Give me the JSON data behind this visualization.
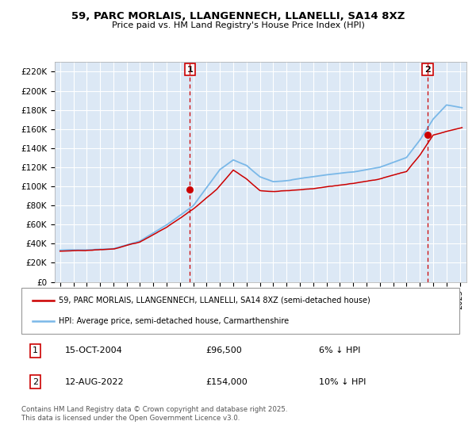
{
  "title": "59, PARC MORLAIS, LLANGENNECH, LLANELLI, SA14 8XZ",
  "subtitle": "Price paid vs. HM Land Registry's House Price Index (HPI)",
  "ylim": [
    0,
    230000
  ],
  "yticks": [
    0,
    20000,
    40000,
    60000,
    80000,
    100000,
    120000,
    140000,
    160000,
    180000,
    200000,
    220000
  ],
  "ytick_labels": [
    "£0",
    "£20K",
    "£40K",
    "£60K",
    "£80K",
    "£100K",
    "£120K",
    "£140K",
    "£160K",
    "£180K",
    "£200K",
    "£220K"
  ],
  "background_color": "#ffffff",
  "plot_bg_color": "#dce8f5",
  "grid_color": "#ffffff",
  "hpi_color": "#7ab8e8",
  "price_color": "#cc0000",
  "transaction1_date": "15-OCT-2004",
  "transaction1_price": 96500,
  "transaction1_info": "6% ↓ HPI",
  "transaction2_date": "12-AUG-2022",
  "transaction2_price": 154000,
  "transaction2_info": "10% ↓ HPI",
  "legend_line1": "59, PARC MORLAIS, LLANGENNECH, LLANELLI, SA14 8XZ (semi-detached house)",
  "legend_line2": "HPI: Average price, semi-detached house, Carmarthenshire",
  "footer": "Contains HM Land Registry data © Crown copyright and database right 2025.\nThis data is licensed under the Open Government Licence v3.0.",
  "hpi_knots_x": [
    0,
    24,
    48,
    72,
    96,
    120,
    144,
    156,
    168,
    180,
    192,
    204,
    216,
    228,
    240,
    264,
    288,
    312,
    324,
    336,
    348,
    362
  ],
  "hpi_knots_y": [
    33000,
    33500,
    35000,
    43000,
    60000,
    80000,
    118000,
    128000,
    122000,
    110000,
    105000,
    106000,
    108000,
    110000,
    112000,
    115000,
    120000,
    130000,
    148000,
    170000,
    185000,
    182000
  ],
  "price_knots_x": [
    0,
    24,
    48,
    72,
    96,
    120,
    141,
    156,
    168,
    180,
    192,
    204,
    216,
    228,
    240,
    264,
    288,
    312,
    324,
    336,
    348,
    362
  ],
  "price_knots_y": [
    32000,
    32500,
    34000,
    41000,
    57000,
    76000,
    96500,
    117000,
    108000,
    96000,
    95000,
    96000,
    97000,
    98000,
    100000,
    103000,
    108000,
    116000,
    133000,
    154000,
    158000,
    162000
  ]
}
